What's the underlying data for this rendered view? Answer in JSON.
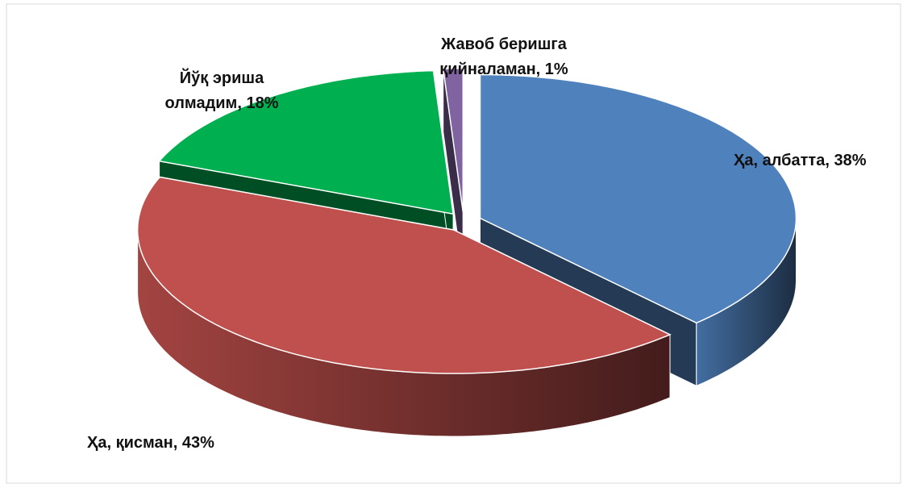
{
  "chart_data": {
    "type": "pie",
    "categories": [
      "Ҳа, албатта, 38%",
      "Ҳа, қисман, 43%",
      "Йўқ эриша олмадим, 18%",
      "Жавоб беришга қийналаман, 1%"
    ],
    "values": [
      38,
      43,
      18,
      1
    ],
    "colors": [
      "#4f81bd",
      "#c0504d",
      "#00b050",
      "#8064a2"
    ]
  }
}
